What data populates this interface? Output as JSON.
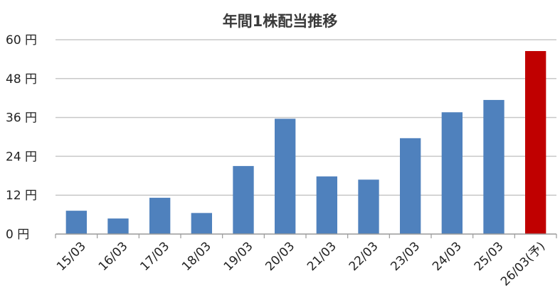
{
  "chart_data": {
    "type": "bar",
    "title": "年間1株配当推移",
    "categories": [
      "15/03",
      "16/03",
      "17/03",
      "18/03",
      "19/03",
      "20/03",
      "21/03",
      "22/03",
      "23/03",
      "24/03",
      "25/03",
      "26/03(予)"
    ],
    "values": [
      7.2,
      4.8,
      11.2,
      6.5,
      21,
      35.6,
      17.8,
      16.8,
      29.6,
      37.6,
      41.4,
      56.5
    ],
    "highlight_last": true,
    "ylim": [
      0,
      60
    ],
    "yticks": [
      0,
      12,
      24,
      36,
      48,
      60
    ],
    "y_unit": "円",
    "grid": true,
    "colors": {
      "bar": "#4f81bd",
      "highlight": "#c00000",
      "grid": "#c8c8c8",
      "axis": "#9a9a9a"
    }
  }
}
